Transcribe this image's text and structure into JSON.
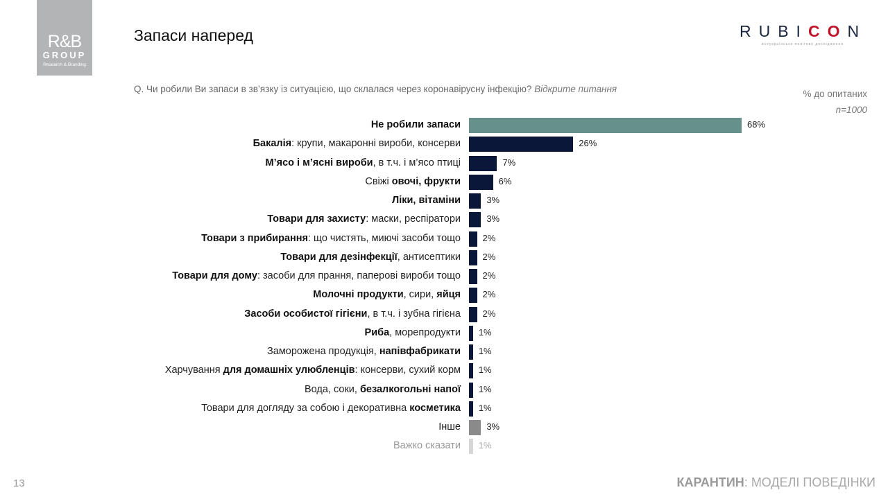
{
  "logo": {
    "main": "R&B",
    "group": "GROUP",
    "sub": "Research & Branding"
  },
  "title": "Запаси наперед",
  "brand": {
    "prefix": "RUBI",
    "highlight": "CO",
    "suffix": "N",
    "tagline": "всеукраїнське полігове дослідження",
    "accent": "#c0142b"
  },
  "question": {
    "text": "Q. Чи робили Ви запаси в зв’язку із ситуацією, що склалася через коронавірусну інфекцію?",
    "note": "Відкрите питання"
  },
  "unit": {
    "label": "% до опитаних",
    "n": "n=1000"
  },
  "chart_data": {
    "type": "bar",
    "orientation": "horizontal",
    "xlim": [
      0,
      68
    ],
    "categories": [
      [
        {
          "t": "Не робили запаси",
          "b": true
        }
      ],
      [
        {
          "t": "Бакалія",
          "b": true
        },
        {
          "t": ": крупи, макаронні вироби, консерви",
          "b": false
        }
      ],
      [
        {
          "t": "М’ясо і м’ясні вироби",
          "b": true
        },
        {
          "t": ", в т.ч. і м’ясо птиці",
          "b": false
        }
      ],
      [
        {
          "t": "Свіжі ",
          "b": false
        },
        {
          "t": "овочі, фрукти",
          "b": true
        }
      ],
      [
        {
          "t": "Ліки, вітаміни",
          "b": true
        }
      ],
      [
        {
          "t": "Товари для захисту",
          "b": true
        },
        {
          "t": ": маски, респіратори",
          "b": false
        }
      ],
      [
        {
          "t": "Товари з прибирання",
          "b": true
        },
        {
          "t": ": що чистять, миючі засоби тощо",
          "b": false
        }
      ],
      [
        {
          "t": "Товари для дезінфекції",
          "b": true
        },
        {
          "t": ", антисептики",
          "b": false
        }
      ],
      [
        {
          "t": "Товари для дому",
          "b": true
        },
        {
          "t": ": засоби для прання, паперові вироби тощо",
          "b": false
        }
      ],
      [
        {
          "t": "Молочні продукти",
          "b": true
        },
        {
          "t": ", сири, ",
          "b": false
        },
        {
          "t": "яйця",
          "b": true
        }
      ],
      [
        {
          "t": "Засоби особистої гігієни",
          "b": true
        },
        {
          "t": ", в т.ч. і зубна гігієна",
          "b": false
        }
      ],
      [
        {
          "t": "Риба",
          "b": true
        },
        {
          "t": ", морепродукти",
          "b": false
        }
      ],
      [
        {
          "t": "Заморожена продукція, ",
          "b": false
        },
        {
          "t": "напівфабрикати",
          "b": true
        }
      ],
      [
        {
          "t": "Харчування ",
          "b": false
        },
        {
          "t": "для домашніх улюбленців",
          "b": true
        },
        {
          "t": ": консерви, сухий корм",
          "b": false
        }
      ],
      [
        {
          "t": "Вода, соки, ",
          "b": false
        },
        {
          "t": "безалкогольні напої",
          "b": true
        }
      ],
      [
        {
          "t": "Товари для догляду за собою і декоративна ",
          "b": false
        },
        {
          "t": "косметика",
          "b": true
        }
      ],
      [
        {
          "t": "Інше",
          "b": false
        }
      ],
      [
        {
          "t": "Важко сказати",
          "b": false
        }
      ]
    ],
    "values": [
      68,
      26,
      7,
      6,
      3,
      3,
      2,
      2,
      2,
      2,
      2,
      1,
      1,
      1,
      1,
      1,
      3,
      1
    ],
    "value_labels": [
      "68%",
      "26%",
      "7%",
      "6%",
      "3%",
      "3%",
      "2%",
      "2%",
      "2%",
      "2%",
      "2%",
      "1%",
      "1%",
      "1%",
      "1%",
      "1%",
      "3%",
      "1%"
    ],
    "colors": {
      "highlight": "#66918a",
      "main": "#0b1738",
      "other": "#8a8a8a",
      "hard_to_say": "#d6d6d6"
    },
    "grid": false
  },
  "footer": {
    "page": "13",
    "bold": "КАРАНТИН",
    "rest": ": МОДЕЛІ ПОВЕДІНКИ"
  }
}
